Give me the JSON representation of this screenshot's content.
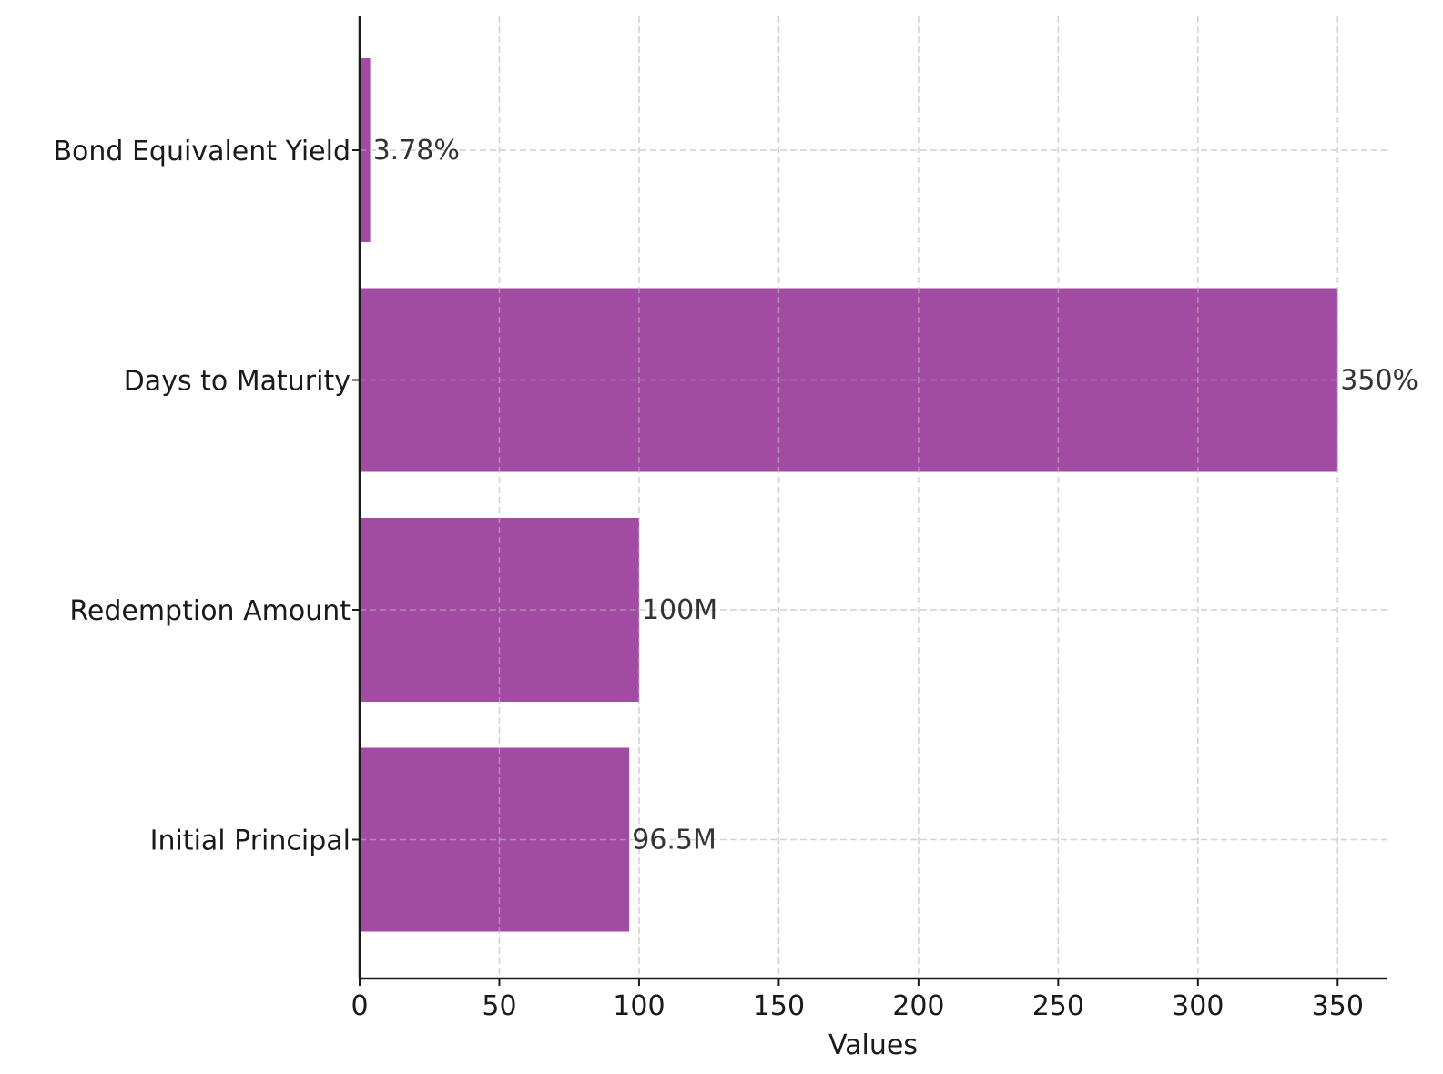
{
  "chart_data": {
    "type": "bar",
    "orientation": "horizontal",
    "categories": [
      "Initial Principal",
      "Redemption Amount",
      "Days to Maturity",
      "Bond Equivalent Yield"
    ],
    "values": [
      96.5,
      100,
      350,
      3.78
    ],
    "data_labels": [
      "96.5M",
      "100M",
      "350%",
      "3.78%"
    ],
    "xlabel": "Values",
    "ylabel": "",
    "title": "",
    "xlim": [
      0,
      367.5
    ],
    "xticks": [
      0,
      50,
      100,
      150,
      200,
      250,
      300,
      350
    ],
    "xtick_labels": [
      "0",
      "50",
      "100",
      "150",
      "200",
      "250",
      "300",
      "350"
    ],
    "grid": true,
    "bar_color": "#a24ba3"
  }
}
